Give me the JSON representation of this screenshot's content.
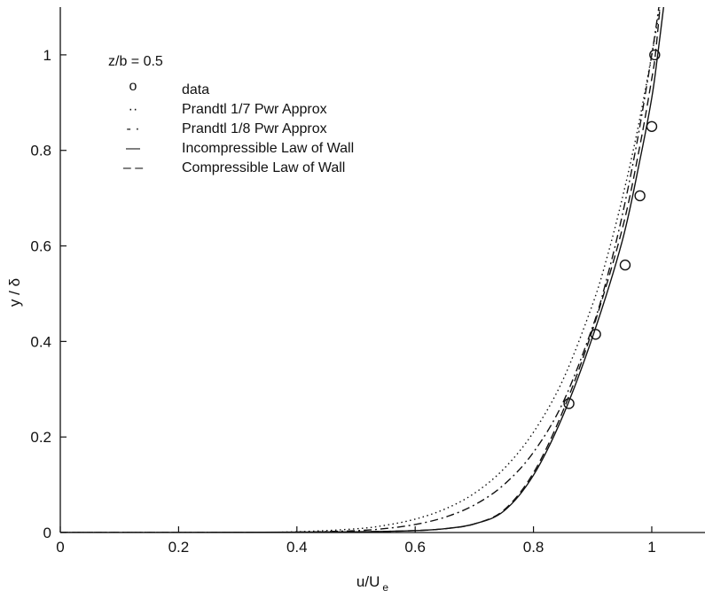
{
  "chart_data": {
    "type": "line",
    "title": "",
    "xlabel": "u/U",
    "xlabel_sub": "e",
    "ylabel": "y / δ",
    "xlim": [
      0,
      1.09
    ],
    "ylim": [
      0,
      1.1
    ],
    "x_ticks": [
      "0",
      "0.2",
      "0.4",
      "0.6",
      "0.8",
      "1"
    ],
    "y_ticks": [
      "0",
      "0.2",
      "0.4",
      "0.6",
      "0.8",
      "1"
    ],
    "grid": false,
    "legend_position": "top-left",
    "annotation": "z/b = 0.5",
    "series": [
      {
        "name": "data",
        "style": "markers",
        "marker": "o",
        "legend_glyph": "o",
        "points": [
          [
            0.86,
            0.27
          ],
          [
            0.905,
            0.415
          ],
          [
            0.955,
            0.56
          ],
          [
            0.98,
            0.705
          ],
          [
            1.0,
            0.85
          ],
          [
            1.005,
            1.0
          ]
        ]
      },
      {
        "name": "Prandtl 1/7 Pwr Approx",
        "style": "dotted",
        "legend_glyph": "··",
        "points": [
          [
            0,
            0
          ],
          [
            0.3,
            0.0002
          ],
          [
            0.4,
            0.0016
          ],
          [
            0.5,
            0.0078
          ],
          [
            0.55,
            0.0152
          ],
          [
            0.6,
            0.028
          ],
          [
            0.65,
            0.049
          ],
          [
            0.7,
            0.082
          ],
          [
            0.75,
            0.1335
          ],
          [
            0.8,
            0.21
          ],
          [
            0.85,
            0.32
          ],
          [
            0.9,
            0.478
          ],
          [
            0.925,
            0.579
          ],
          [
            0.95,
            0.699
          ],
          [
            0.975,
            0.837
          ],
          [
            1.0,
            1.0
          ],
          [
            1.014,
            1.1
          ]
        ]
      },
      {
        "name": "Prandtl 1/8 Pwr Approx",
        "style": "dash-dot",
        "legend_glyph": "- ·",
        "points": [
          [
            0,
            0
          ],
          [
            0.3,
            7e-05
          ],
          [
            0.4,
            0.0007
          ],
          [
            0.5,
            0.0039
          ],
          [
            0.55,
            0.0084
          ],
          [
            0.6,
            0.0168
          ],
          [
            0.65,
            0.0319
          ],
          [
            0.7,
            0.0576
          ],
          [
            0.75,
            0.1001
          ],
          [
            0.8,
            0.168
          ],
          [
            0.85,
            0.2725
          ],
          [
            0.9,
            0.4305
          ],
          [
            0.925,
            0.5363
          ],
          [
            0.95,
            0.6634
          ],
          [
            0.975,
            0.8167
          ],
          [
            1.0,
            1.0
          ],
          [
            1.012,
            1.1
          ]
        ]
      },
      {
        "name": "Incompressible Law of Wall",
        "style": "solid",
        "legend_glyph": "—",
        "points": [
          [
            0,
            0
          ],
          [
            0.3,
            0.0003
          ],
          [
            0.5,
            0.0015
          ],
          [
            0.6,
            0.004
          ],
          [
            0.65,
            0.008
          ],
          [
            0.7,
            0.018
          ],
          [
            0.75,
            0.045
          ],
          [
            0.8,
            0.12
          ],
          [
            0.85,
            0.245
          ],
          [
            0.9,
            0.41
          ],
          [
            0.95,
            0.61
          ],
          [
            0.98,
            0.78
          ],
          [
            1.0,
            0.91
          ],
          [
            1.01,
            1.0
          ],
          [
            1.02,
            1.1
          ]
        ]
      },
      {
        "name": "Compressible Law of Wall",
        "style": "dashed",
        "legend_glyph": "– –",
        "points": [
          [
            0,
            0
          ],
          [
            0.3,
            0.0003
          ],
          [
            0.5,
            0.0015
          ],
          [
            0.6,
            0.004
          ],
          [
            0.65,
            0.008
          ],
          [
            0.7,
            0.018
          ],
          [
            0.75,
            0.047
          ],
          [
            0.8,
            0.125
          ],
          [
            0.85,
            0.255
          ],
          [
            0.9,
            0.425
          ],
          [
            0.95,
            0.635
          ],
          [
            0.98,
            0.81
          ],
          [
            1.0,
            0.95
          ],
          [
            1.006,
            1.0
          ],
          [
            1.014,
            1.1
          ]
        ]
      }
    ]
  }
}
